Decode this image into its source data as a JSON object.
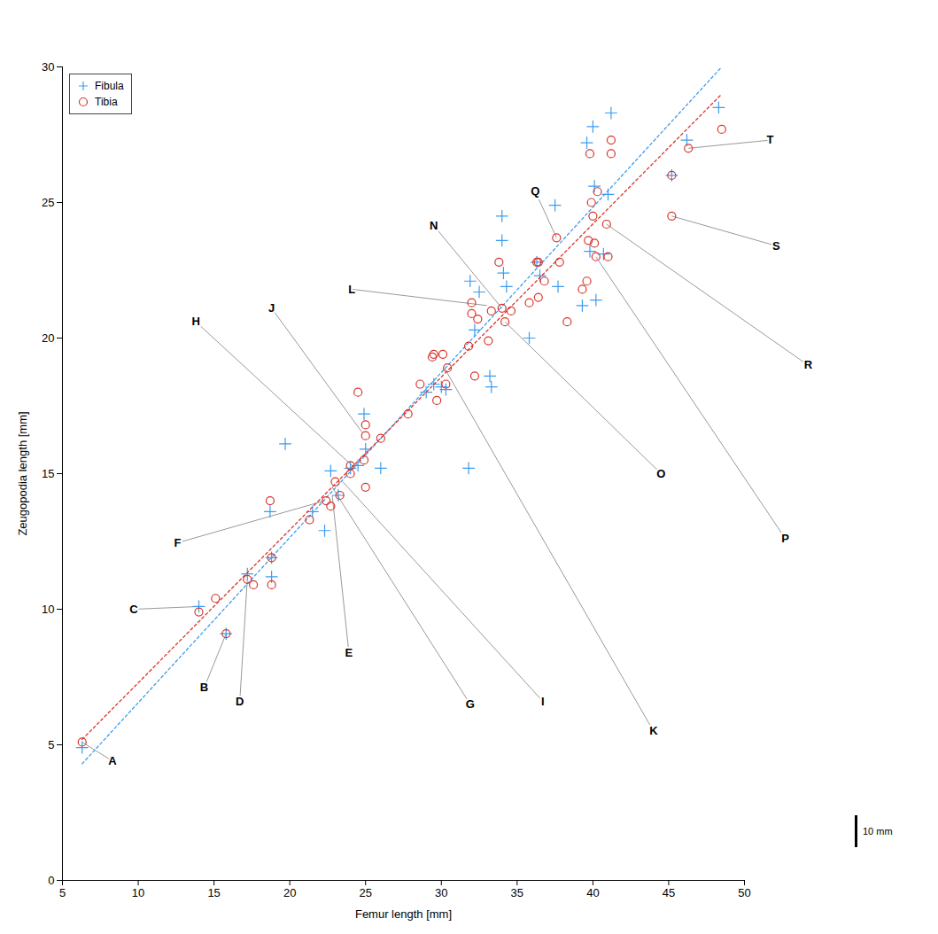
{
  "chart_data": {
    "type": "scatter",
    "x_label": "Femur length [mm]",
    "y_label": "Zeugopodia length [mm]",
    "xlim": [
      5,
      50
    ],
    "ylim": [
      0,
      30
    ],
    "xticks": [
      5,
      10,
      15,
      20,
      25,
      30,
      35,
      40,
      45,
      50
    ],
    "yticks": [
      0,
      5,
      10,
      15,
      20,
      25,
      30
    ],
    "grid": false,
    "legend": "top-left",
    "series": [
      {
        "name": "Fibula",
        "color": "#3d9cf0",
        "marker": "plus",
        "x": [
          6.3,
          14.0,
          15.8,
          17.2,
          18.7,
          18.8,
          18.8,
          19.7,
          21.5,
          22.3,
          22.7,
          23.2,
          24.0,
          24.5,
          24.9,
          25.0,
          26.0,
          29.0,
          29.5,
          30.0,
          30.3,
          31.8,
          31.9,
          32.2,
          32.5,
          33.2,
          33.3,
          34.0,
          34.0,
          34.1,
          34.3,
          35.8,
          36.3,
          36.5,
          37.5,
          37.7,
          39.3,
          39.6,
          39.8,
          40.0,
          40.1,
          40.2,
          40.7,
          41.0,
          41.2,
          45.2,
          46.2,
          48.3
        ],
        "y": [
          4.9,
          10.1,
          9.1,
          11.3,
          13.6,
          11.9,
          11.2,
          16.1,
          13.6,
          12.9,
          15.1,
          14.2,
          15.2,
          15.3,
          17.2,
          15.9,
          15.2,
          18.0,
          18.3,
          18.2,
          18.1,
          15.2,
          22.1,
          20.3,
          21.7,
          18.6,
          18.2,
          24.5,
          23.6,
          22.4,
          21.9,
          20.0,
          22.8,
          22.3,
          24.9,
          21.9,
          21.2,
          27.2,
          23.2,
          27.8,
          25.6,
          21.4,
          23.1,
          25.3,
          28.3,
          26.0,
          27.3,
          28.5
        ],
        "fit": {
          "x": [
            6.3,
            48.5
          ],
          "y": [
            4.3,
            30.0
          ],
          "line_style": "dashed"
        }
      },
      {
        "name": "Tibia",
        "color": "#d9342b",
        "marker": "circle",
        "x": [
          6.3,
          14.0,
          15.1,
          15.8,
          17.2,
          17.6,
          18.7,
          18.8,
          18.8,
          21.3,
          22.4,
          22.7,
          23.0,
          23.3,
          24.0,
          24.0,
          24.5,
          24.9,
          25.0,
          25.0,
          25.0,
          26.0,
          27.8,
          28.6,
          29.4,
          29.5,
          29.7,
          30.1,
          30.3,
          30.4,
          31.8,
          32.0,
          32.0,
          32.2,
          32.4,
          33.1,
          33.3,
          33.8,
          34.0,
          34.2,
          34.6,
          35.8,
          36.3,
          36.4,
          36.4,
          36.8,
          37.6,
          37.8,
          38.3,
          39.3,
          39.6,
          39.7,
          39.8,
          39.9,
          40.0,
          40.1,
          40.2,
          40.3,
          40.9,
          41.0,
          41.2,
          41.2,
          45.2,
          45.2,
          46.3,
          48.5
        ],
        "y": [
          5.1,
          9.9,
          10.4,
          9.1,
          11.1,
          10.9,
          14.0,
          11.9,
          10.9,
          13.3,
          14.0,
          13.8,
          14.7,
          14.2,
          15.3,
          15.0,
          18.0,
          15.5,
          16.8,
          16.4,
          14.5,
          16.3,
          17.2,
          18.3,
          19.3,
          19.4,
          17.7,
          19.4,
          18.3,
          18.9,
          19.7,
          21.3,
          20.9,
          18.6,
          20.7,
          19.9,
          21.0,
          22.8,
          21.1,
          20.6,
          21.0,
          21.3,
          22.8,
          22.8,
          21.5,
          22.1,
          23.7,
          22.8,
          20.6,
          21.8,
          22.1,
          23.6,
          26.8,
          25.0,
          24.5,
          23.5,
          23.0,
          25.4,
          24.2,
          23.0,
          26.8,
          27.3,
          26.0,
          24.5,
          27.0,
          27.7
        ],
        "fit": {
          "x": [
            6.3,
            48.5
          ],
          "y": [
            5.2,
            29.0
          ],
          "line_style": "dashed"
        }
      }
    ],
    "annotations": [
      {
        "text": "A",
        "x": 6.3,
        "y": 5.1
      },
      {
        "text": "B",
        "x": 15.8,
        "y": 9.1
      },
      {
        "text": "C",
        "x": 14.0,
        "y": 10.1
      },
      {
        "text": "D",
        "x": 17.2,
        "y": 11.1
      },
      {
        "text": "E",
        "x": 22.8,
        "y": 14.2
      },
      {
        "text": "F",
        "x": 22.3,
        "y": 14.0
      },
      {
        "text": "G",
        "x": 22.8,
        "y": 14.5
      },
      {
        "text": "H",
        "x": 24.3,
        "y": 15.2
      },
      {
        "text": "I",
        "x": 23.5,
        "y": 14.7
      },
      {
        "text": "J",
        "x": 24.8,
        "y": 16.5
      },
      {
        "text": "K",
        "x": 30.2,
        "y": 18.9
      },
      {
        "text": "L",
        "x": 33.0,
        "y": 21.2
      },
      {
        "text": "N",
        "x": 34.0,
        "y": 21.1
      },
      {
        "text": "O",
        "x": 34.2,
        "y": 20.6
      },
      {
        "text": "P",
        "x": 40.2,
        "y": 23.0
      },
      {
        "text": "Q",
        "x": 37.6,
        "y": 23.7
      },
      {
        "text": "R",
        "x": 40.9,
        "y": 24.2
      },
      {
        "text": "S",
        "x": 45.2,
        "y": 24.5
      },
      {
        "text": "T",
        "x": 46.3,
        "y": 27.0
      }
    ],
    "scale_bar": {
      "label": "10 mm"
    }
  }
}
